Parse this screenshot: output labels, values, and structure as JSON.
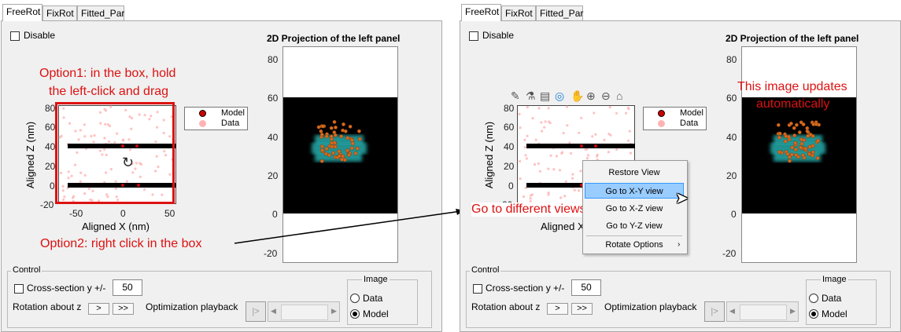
{
  "left": {
    "tabs": [
      "FreeRot",
      "FixRot",
      "Fitted_Par"
    ],
    "disable_label": "Disable",
    "plot_title": "2D Projection of the left panel",
    "xlabel": "Aligned X (nm)",
    "ylabel": "Aligned Z (nm)",
    "left_y_ticks": [
      "80",
      "60",
      "40",
      "20",
      "0",
      "-20"
    ],
    "left_x_ticks": [
      "-50",
      "0",
      "50"
    ],
    "right_y_ticks": [
      "80",
      "60",
      "40",
      "20",
      "0",
      "-20"
    ],
    "legend": [
      "Model",
      "Data"
    ],
    "annotation1": [
      "Option1: in the box, hold",
      "the left-click and drag"
    ],
    "annotation2": "Option2: right click in the box",
    "control_label": "Control",
    "cross_section_label": "Cross-section y +/-",
    "cross_section_value": "50",
    "rotation_label": "Rotation about z",
    "rot_btn1": ">",
    "rot_btn2": ">>",
    "opt_playback_label": "Optimization playback",
    "play_btn": "|>",
    "image_group_label": "Image",
    "radio_data": "Data",
    "radio_model": "Model"
  },
  "right": {
    "tabs": [
      "FreeRot",
      "FixRot",
      "Fitted_Par"
    ],
    "disable_label": "Disable",
    "plot_title": "2D Projection of the left panel",
    "ylabel": "Aligned Z (nm)",
    "xlabel_partial": "Aligned X",
    "x_tick_partial": "-50",
    "left_y_ticks": [
      "80",
      "60",
      "40",
      "20",
      "0",
      "-20"
    ],
    "right_y_ticks": [
      "80",
      "60",
      "40",
      "20",
      "0",
      "-20"
    ],
    "legend": [
      "Model",
      "Data"
    ],
    "image_note": [
      "This image updates",
      "automatically"
    ],
    "views_note": "Go to different views",
    "context_menu": [
      "Restore View",
      "Go to X-Y view",
      "Go to X-Z view",
      "Go to Y-Z view",
      "Rotate Options"
    ],
    "control_label": "Control",
    "cross_section_label": "Cross-section y +/-",
    "cross_section_value": "50",
    "rotation_label": "Rotation about z",
    "rot_btn1": ">",
    "rot_btn2": ">>",
    "opt_playback_label": "Optimization playback",
    "play_btn": "|>",
    "image_group_label": "Image",
    "radio_data": "Data",
    "radio_model": "Model"
  },
  "colors": {
    "annotation": "#dd1111",
    "model_marker": "#cc0000",
    "data_marker": "#ffb3b3",
    "projection_bg": "#000000",
    "glow": "#30e0e0",
    "menu_highlight": "#99ccff"
  },
  "icons": [
    "brush-icon",
    "data-tip-icon",
    "legend-icon",
    "rotate-3d-icon",
    "pan-hand-icon",
    "zoom-in-icon",
    "zoom-out-icon",
    "home-icon",
    "mouse-pointer-icon",
    "rotate-arrow-icon"
  ]
}
